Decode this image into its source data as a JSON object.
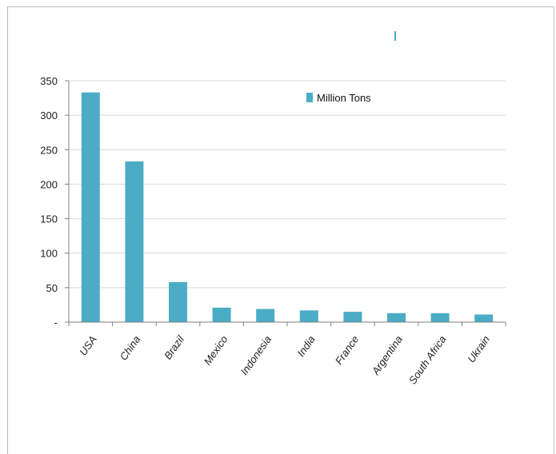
{
  "chart_data": {
    "type": "bar",
    "title": "",
    "xlabel": "",
    "ylabel": "",
    "categories": [
      "USA",
      "China",
      "Brazil",
      "Mexico",
      "Indonesia",
      "India",
      "France",
      "Argentina",
      "South Africa",
      "Ukrain"
    ],
    "series": [
      {
        "name": "Million Tons",
        "values": [
          333,
          233,
          58,
          21,
          19,
          17,
          15,
          13,
          13,
          11
        ]
      }
    ],
    "ylim": [
      0,
      350
    ],
    "yticks": [
      0,
      50,
      100,
      150,
      200,
      250,
      300,
      350
    ],
    "ytick_labels": [
      "-",
      "50",
      "100",
      "150",
      "200",
      "250",
      "300",
      "350"
    ],
    "grid": true,
    "legend_position": "top-right",
    "colors": {
      "bar": "#4bacc6",
      "grid": "#d9d9d9",
      "axis": "#808080"
    }
  }
}
